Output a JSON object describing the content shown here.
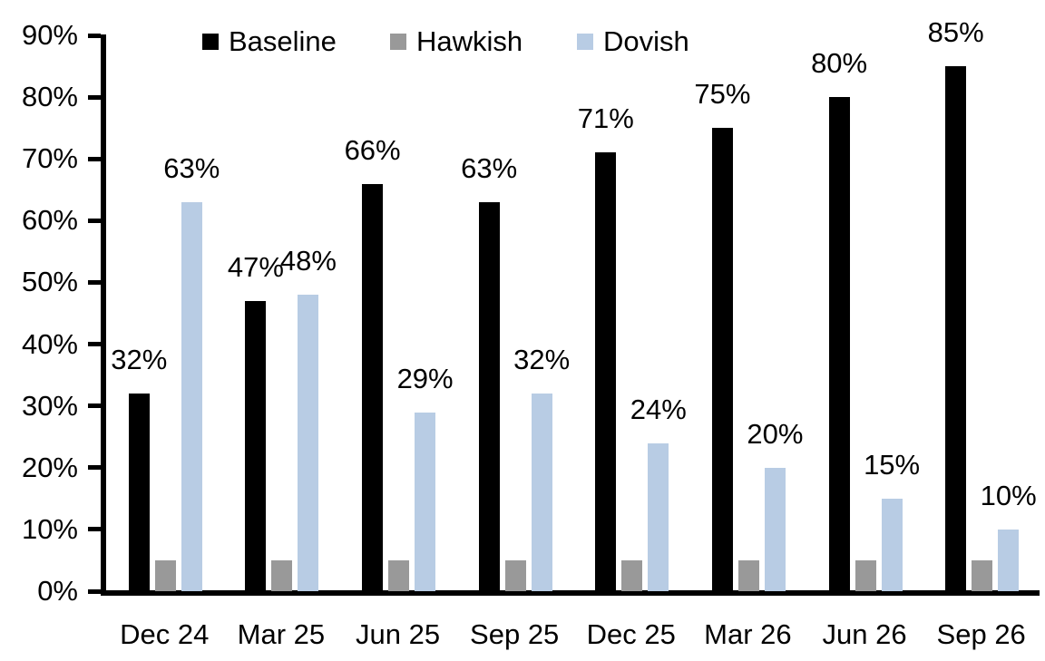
{
  "chart_data": {
    "type": "bar",
    "title": "",
    "categories": [
      "Dec 24",
      "Mar 25",
      "Jun 25",
      "Sep 25",
      "Dec 25",
      "Mar 26",
      "Jun 26",
      "Sep 26"
    ],
    "series": [
      {
        "name": "Baseline",
        "color": "#000000",
        "values": [
          32,
          47,
          66,
          63,
          71,
          75,
          80,
          85
        ],
        "labels": [
          "32%",
          "47%",
          "66%",
          "63%",
          "71%",
          "75%",
          "80%",
          "85%"
        ],
        "show_labels": true
      },
      {
        "name": "Hawkish",
        "color": "#999999",
        "values": [
          5,
          5,
          5,
          5,
          5,
          5,
          5,
          5
        ],
        "labels": [
          "",
          "",
          "",
          "",
          "",
          "",
          "",
          ""
        ],
        "show_labels": false
      },
      {
        "name": "Dovish",
        "color": "#B8CCE4",
        "values": [
          63,
          48,
          29,
          32,
          24,
          20,
          15,
          10
        ],
        "labels": [
          "63%",
          "48%",
          "29%",
          "32%",
          "24%",
          "20%",
          "15%",
          "10%"
        ],
        "show_labels": true
      }
    ],
    "ylim": [
      0,
      90
    ],
    "y_tick_step": 10,
    "y_tick_labels": [
      "0%",
      "10%",
      "20%",
      "30%",
      "40%",
      "50%",
      "60%",
      "70%",
      "80%",
      "90%"
    ],
    "grid": false,
    "legend_position": "top",
    "axis_color": "#000000",
    "background_color": "#FFFFFF",
    "value_suffix": "%"
  }
}
